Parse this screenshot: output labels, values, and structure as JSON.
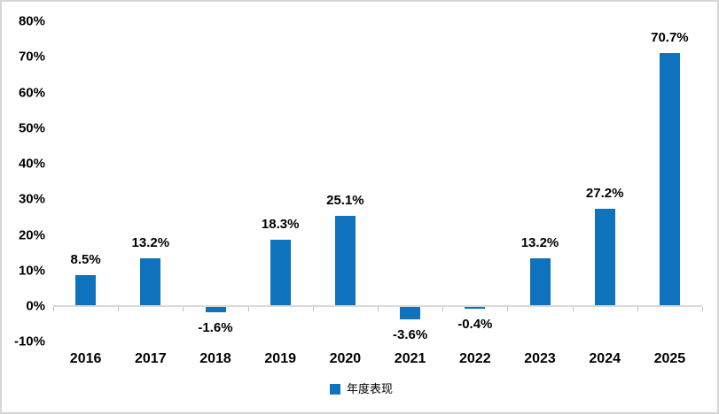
{
  "chart_data": {
    "type": "bar",
    "categories": [
      "2016",
      "2017",
      "2018",
      "2019",
      "2020",
      "2021",
      "2022",
      "2023",
      "2024",
      "2025"
    ],
    "series": [
      {
        "name": "年度表现",
        "values": [
          8.5,
          13.2,
          -1.6,
          18.3,
          25.1,
          -3.6,
          -0.4,
          13.2,
          27.2,
          70.7
        ],
        "data_labels": [
          "8.5%",
          "13.2%",
          "-1.6%",
          "18.3%",
          "25.1%",
          "-3.6%",
          "-0.4%",
          "13.2%",
          "27.2%",
          "70.7%"
        ]
      }
    ],
    "title": "",
    "xlabel": "",
    "ylabel": "",
    "ylim": [
      -10,
      80
    ],
    "ytick_step": 10,
    "ytick_suffix": "%",
    "grid": false,
    "legend": "年度表现",
    "legend_position": "bottom",
    "colors": {
      "bar": "#0F72BC",
      "axis_line": "#D9D9D9",
      "tick": "#BFBFBF",
      "text": "#000000",
      "frame_border": "#D6D6D6",
      "background": "#FFFFFF"
    }
  }
}
